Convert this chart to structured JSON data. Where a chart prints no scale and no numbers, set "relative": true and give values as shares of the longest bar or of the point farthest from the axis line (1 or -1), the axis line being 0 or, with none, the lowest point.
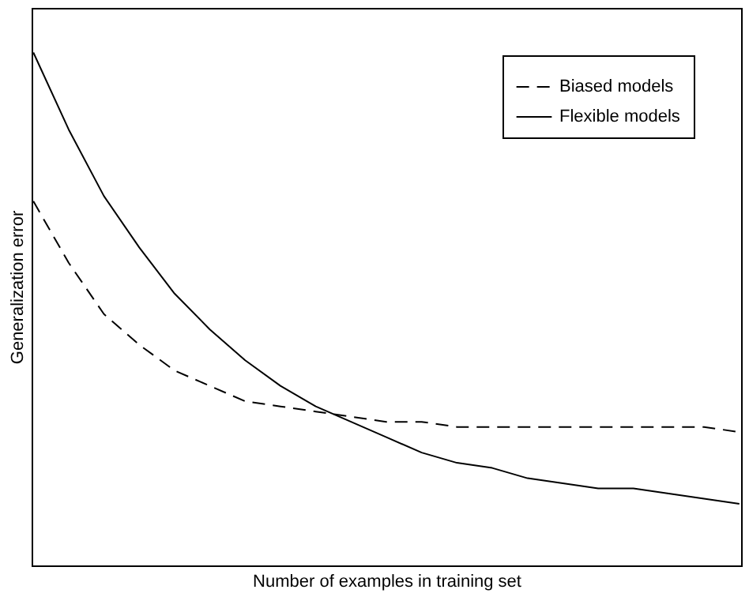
{
  "chart_data": {
    "type": "line",
    "relative": true,
    "xlabel": "Number of examples in training set",
    "ylabel": "Generalization error",
    "legend": "top right",
    "categories": [
      null,
      null,
      null,
      null,
      null,
      null,
      null,
      null,
      null,
      null,
      null,
      null,
      null,
      null,
      null,
      null,
      null,
      null,
      null,
      null,
      null
    ],
    "series": [
      {
        "name": "Biased models",
        "color": "#000000",
        "line_style": "dashed",
        "values": [
          0.71,
          0.59,
          0.49,
          0.43,
          0.38,
          0.35,
          0.32,
          0.31,
          0.3,
          0.29,
          0.28,
          0.28,
          0.27,
          0.27,
          0.27,
          0.27,
          0.27,
          0.27,
          0.27,
          0.27,
          0.26
        ]
      },
      {
        "name": "Flexible models",
        "color": "#000000",
        "line_style": "solid",
        "values": [
          1.0,
          0.85,
          0.72,
          0.62,
          0.53,
          0.46,
          0.4,
          0.35,
          0.31,
          0.28,
          0.25,
          0.22,
          0.2,
          0.19,
          0.17,
          0.16,
          0.15,
          0.15,
          0.14,
          0.13,
          0.12
        ]
      }
    ]
  }
}
